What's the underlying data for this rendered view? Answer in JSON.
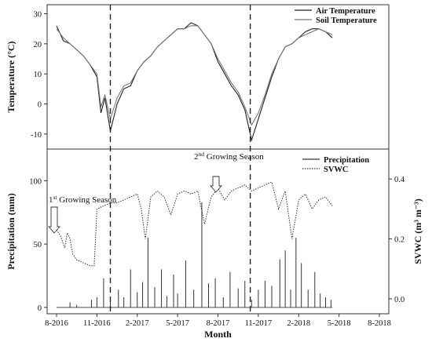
{
  "chart_data": [
    {
      "type": "line",
      "panel": "top",
      "ylabel": "Temperature (°C)",
      "ylim": [
        -15,
        33
      ],
      "y_ticks": [
        "-10",
        "0",
        "10",
        "20",
        "30"
      ],
      "legend": [
        "Air Temperature",
        "Soil Temperature"
      ],
      "legend_position": "top-right",
      "series": [
        {
          "name": "Air Temperature",
          "points": [
            [
              0,
              26
            ],
            [
              0.5,
              21
            ],
            [
              1,
              20
            ],
            [
              1.5,
              18
            ],
            [
              2,
              16
            ],
            [
              2.5,
              13
            ],
            [
              3,
              9
            ],
            [
              3.3,
              -3
            ],
            [
              3.6,
              2
            ],
            [
              4,
              -9
            ],
            [
              4.5,
              0
            ],
            [
              5,
              5
            ],
            [
              5.5,
              6
            ],
            [
              6,
              11
            ],
            [
              6.5,
              14
            ],
            [
              7,
              16
            ],
            [
              7.5,
              19
            ],
            [
              8,
              21
            ],
            [
              8.5,
              23
            ],
            [
              9,
              25
            ],
            [
              9.5,
              25
            ],
            [
              10,
              27
            ],
            [
              10.5,
              26
            ],
            [
              11,
              23
            ],
            [
              11.5,
              20
            ],
            [
              12,
              14
            ],
            [
              12.5,
              10
            ],
            [
              13,
              6
            ],
            [
              13.5,
              3
            ],
            [
              14,
              -2
            ],
            [
              14.5,
              -12
            ],
            [
              15,
              -5
            ],
            [
              15.5,
              2
            ],
            [
              16,
              9
            ],
            [
              16.5,
              15
            ],
            [
              17,
              19
            ],
            [
              17.5,
              20
            ],
            [
              18,
              22
            ],
            [
              18.5,
              24
            ],
            [
              19,
              25
            ],
            [
              19.5,
              25
            ],
            [
              20,
              24
            ],
            [
              20.5,
              22
            ]
          ]
        },
        {
          "name": "Soil Temperature",
          "points": [
            [
              0,
              25
            ],
            [
              0.5,
              22
            ],
            [
              1,
              20
            ],
            [
              1.5,
              18
            ],
            [
              2,
              16
            ],
            [
              2.5,
              13
            ],
            [
              3,
              10
            ],
            [
              3.3,
              -1
            ],
            [
              3.6,
              3
            ],
            [
              4,
              -5
            ],
            [
              4.5,
              2
            ],
            [
              5,
              6
            ],
            [
              5.5,
              7
            ],
            [
              6,
              11
            ],
            [
              6.5,
              14
            ],
            [
              7,
              16
            ],
            [
              7.5,
              19
            ],
            [
              8,
              21
            ],
            [
              8.5,
              23
            ],
            [
              9,
              25
            ],
            [
              9.5,
              25
            ],
            [
              10,
              26
            ],
            [
              10.5,
              26
            ],
            [
              11,
              23
            ],
            [
              11.5,
              20
            ],
            [
              12,
              15
            ],
            [
              12.5,
              11
            ],
            [
              13,
              7
            ],
            [
              13.5,
              4
            ],
            [
              14,
              -1
            ],
            [
              14.5,
              -7
            ],
            [
              15,
              -3
            ],
            [
              15.5,
              3
            ],
            [
              16,
              10
            ],
            [
              16.5,
              15
            ],
            [
              17,
              19
            ],
            [
              17.5,
              20
            ],
            [
              18,
              22
            ],
            [
              18.5,
              23
            ],
            [
              19,
              24
            ],
            [
              19.5,
              25
            ],
            [
              20,
              24
            ],
            [
              20.5,
              23
            ]
          ]
        }
      ]
    },
    {
      "type": "line",
      "panel": "bottom",
      "xlabel": "Month",
      "ylabel": "Precipitation (mm)",
      "y2label": "SVWC (m³ m⁻³)",
      "ylim": [
        -5,
        125
      ],
      "y2lim": [
        -0.05,
        0.5
      ],
      "y_ticks": [
        "0",
        "50",
        "100"
      ],
      "y2_ticks": [
        "0.0",
        "0.2",
        "0.4"
      ],
      "x_ticks": [
        "8-2016",
        "11-2016",
        "2-2017",
        "5-2017",
        "8-2017",
        "11-2017",
        "2-2018",
        "5-2018",
        "8-2018"
      ],
      "legend": [
        "Precipitation",
        "SVWC"
      ],
      "legend_position": "top-right",
      "annotations": [
        {
          "text": "1",
          "sup": "st",
          "rest": " Growing Season",
          "x": 1.0,
          "y": 0.31
        },
        {
          "text": "2",
          "sup": "nd",
          "rest": " Growing Season",
          "x": 10.0,
          "y": 0.36
        }
      ],
      "series": [
        {
          "name": "SVWC",
          "axis": "right",
          "points": [
            [
              0,
              0.23
            ],
            [
              0.3,
              0.21
            ],
            [
              0.6,
              0.17
            ],
            [
              0.8,
              0.22
            ],
            [
              1,
              0.2
            ],
            [
              1.2,
              0.15
            ],
            [
              1.5,
              0.13
            ],
            [
              2,
              0.12
            ],
            [
              2.5,
              0.11
            ],
            [
              2.8,
              0.11
            ],
            [
              3,
              0.3
            ],
            [
              3.5,
              0.31
            ],
            [
              4,
              0.32
            ],
            [
              4.5,
              0.32
            ],
            [
              5,
              0.33
            ],
            [
              5.5,
              0.34
            ],
            [
              6,
              0.35
            ],
            [
              6.3,
              0.3
            ],
            [
              6.6,
              0.2
            ],
            [
              7,
              0.34
            ],
            [
              7.5,
              0.36
            ],
            [
              8,
              0.34
            ],
            [
              8.5,
              0.28
            ],
            [
              9,
              0.35
            ],
            [
              9.5,
              0.36
            ],
            [
              10,
              0.35
            ],
            [
              10.5,
              0.36
            ],
            [
              11,
              0.25
            ],
            [
              11.5,
              0.34
            ],
            [
              12,
              0.37
            ],
            [
              12.5,
              0.33
            ],
            [
              13,
              0.36
            ],
            [
              13.5,
              0.37
            ],
            [
              14,
              0.38
            ],
            [
              14.5,
              0.36
            ],
            [
              15,
              0.37
            ],
            [
              15.5,
              0.38
            ],
            [
              16,
              0.39
            ],
            [
              16.5,
              0.3
            ],
            [
              17,
              0.36
            ],
            [
              17.5,
              0.2
            ],
            [
              18,
              0.33
            ],
            [
              18.5,
              0.35
            ],
            [
              19,
              0.3
            ],
            [
              19.5,
              0.33
            ],
            [
              20,
              0.34
            ],
            [
              20.5,
              0.31
            ]
          ]
        },
        {
          "name": "Precipitation",
          "axis": "left",
          "points": [
            [
              1.0,
              4
            ],
            [
              1.5,
              2
            ],
            [
              2.6,
              6
            ],
            [
              3,
              8
            ],
            [
              3.5,
              23
            ],
            [
              4,
              5
            ],
            [
              4.6,
              14
            ],
            [
              5,
              8
            ],
            [
              5.5,
              30
            ],
            [
              6,
              12
            ],
            [
              6.4,
              20
            ],
            [
              6.8,
              55
            ],
            [
              7.3,
              16
            ],
            [
              7.8,
              30
            ],
            [
              8.2,
              9
            ],
            [
              8.7,
              26
            ],
            [
              9,
              11
            ],
            [
              9.6,
              37
            ],
            [
              10.2,
              14
            ],
            [
              10.8,
              83
            ],
            [
              11.3,
              19
            ],
            [
              11.8,
              23
            ],
            [
              12.4,
              8
            ],
            [
              12.9,
              28
            ],
            [
              13.5,
              15
            ],
            [
              14,
              21
            ],
            [
              14.5,
              6
            ],
            [
              15,
              14
            ],
            [
              15.5,
              21
            ],
            [
              16,
              17
            ],
            [
              16.6,
              38
            ],
            [
              17,
              45
            ],
            [
              17.4,
              14
            ],
            [
              17.8,
              55
            ],
            [
              18.2,
              35
            ],
            [
              18.7,
              14
            ],
            [
              19.2,
              28
            ],
            [
              19.6,
              11
            ],
            [
              20,
              8
            ],
            [
              20.4,
              6
            ]
          ]
        }
      ]
    }
  ]
}
